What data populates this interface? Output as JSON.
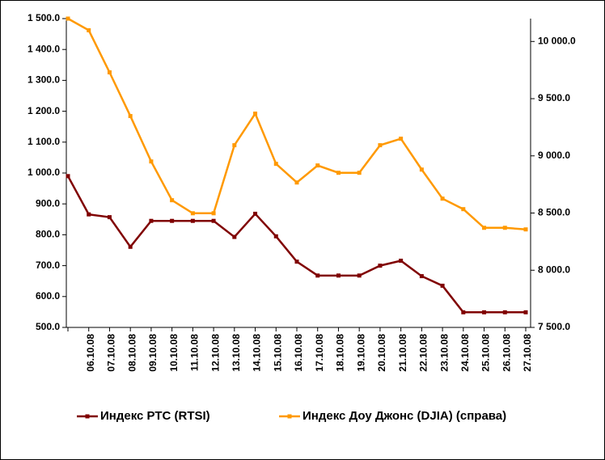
{
  "chart_data": {
    "type": "line",
    "categories": [
      null,
      "06.10.08",
      "07.10.08",
      "08.10.08",
      "09.10.08",
      "10.10.08",
      "11.10.08",
      "12.10.08",
      "13.10.08",
      "14.10.08",
      "15.10.08",
      "16.10.08",
      "17.10.08",
      "18.10.08",
      "19.10.08",
      "20.10.08",
      "21.10.08",
      "22.10.08",
      "23.10.08",
      "24.10.08",
      "25.10.08",
      "26.10.08",
      "27.10.08"
    ],
    "series": [
      {
        "name": "Индекс РТС (RTSI)",
        "color": "#800000",
        "axis": "y",
        "values": [
          990,
          866,
          857,
          761,
          845,
          845,
          845,
          845,
          793,
          868,
          795,
          713,
          668,
          668,
          668,
          700,
          716,
          666,
          635,
          549,
          549,
          549,
          549
        ]
      },
      {
        "name": "Индекс Доу Джонс (DJIA) (справа)",
        "color": "#ff9900",
        "axis": "y2",
        "values": [
          10200,
          10098,
          9730,
          9348,
          8951,
          8612,
          8498,
          8498,
          9093,
          9369,
          8930,
          8767,
          8916,
          8852,
          8852,
          9093,
          9150,
          8880,
          8626,
          8534,
          8371,
          8371,
          8357
        ]
      }
    ],
    "ylim": [
      500,
      1500
    ],
    "yticks": [
      {
        "value": 500,
        "label": "500.0"
      },
      {
        "value": 600,
        "label": "600.0"
      },
      {
        "value": 700,
        "label": "700.0"
      },
      {
        "value": 800,
        "label": "800.0"
      },
      {
        "value": 900,
        "label": "900.0"
      },
      {
        "value": 1000,
        "label": "1 000.0"
      },
      {
        "value": 1100,
        "label": "1 100.0"
      },
      {
        "value": 1200,
        "label": "1 200.0"
      },
      {
        "value": 1300,
        "label": "1 300.0"
      },
      {
        "value": 1400,
        "label": "1 400.0"
      },
      {
        "value": 1500,
        "label": "1 500.0"
      }
    ],
    "y2lim": [
      7500,
      10200
    ],
    "y2ticks": [
      {
        "value": 7500,
        "label": "7 500.0"
      },
      {
        "value": 8000,
        "label": "8 000.0"
      },
      {
        "value": 8500,
        "label": "8 500.0"
      },
      {
        "value": 9000,
        "label": "9 000.0"
      },
      {
        "value": 9500,
        "label": "9 500.0"
      },
      {
        "value": 10000,
        "label": "10 000.0"
      }
    ],
    "legend": "bottom"
  }
}
